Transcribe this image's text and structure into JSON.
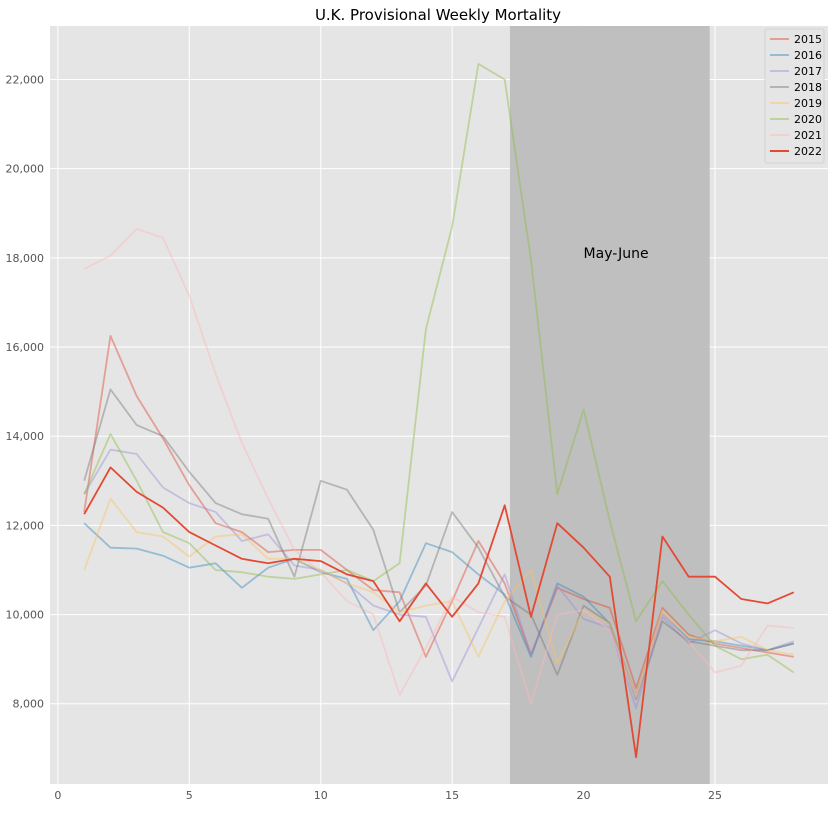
{
  "chart_data": {
    "type": "line",
    "title": "U.K. Provisional Weekly Mortality",
    "xlabel": "",
    "ylabel": "",
    "xlim": [
      -0.3,
      29.3
    ],
    "ylim": [
      6200,
      23200
    ],
    "x_ticks": [
      0,
      5,
      10,
      15,
      20,
      25
    ],
    "x_tick_labels": [
      "0",
      "5",
      "10",
      "15",
      "20",
      "25"
    ],
    "y_ticks": [
      8000,
      10000,
      12000,
      14000,
      16000,
      18000,
      20000,
      22000
    ],
    "y_tick_labels": [
      "8,000",
      "10,000",
      "12,000",
      "14,000",
      "16,000",
      "18,000",
      "20,000",
      "22,000"
    ],
    "grid": true,
    "legend_position": "top-right",
    "shaded_region": {
      "x_start": 17.2,
      "x_end": 24.8,
      "label": "May-June",
      "label_x": 20,
      "label_y": 18000,
      "color": "#bdbdbd"
    },
    "x": [
      1,
      2,
      3,
      4,
      5,
      6,
      7,
      8,
      9,
      10,
      11,
      12,
      13,
      14,
      15,
      16,
      17,
      18,
      19,
      20,
      21,
      22,
      23,
      24,
      25,
      26,
      27,
      28
    ],
    "series": [
      {
        "name": "2015",
        "color": "#E24A33",
        "opacity": 0.45,
        "values": [
          12300,
          16250,
          14900,
          13950,
          12900,
          12050,
          11850,
          11400,
          11450,
          11450,
          11000,
          10550,
          10500,
          9050,
          10300,
          11650,
          10700,
          9100,
          10600,
          10350,
          10150,
          8350,
          10150,
          9550,
          9350,
          9250,
          9150,
          9050
        ]
      },
      {
        "name": "2016",
        "color": "#348ABD",
        "opacity": 0.45,
        "values": [
          12050,
          11500,
          11480,
          11320,
          11050,
          11150,
          10600,
          11050,
          11250,
          10950,
          10800,
          9650,
          10300,
          11600,
          11400,
          10900,
          10450,
          9050,
          10700,
          10400,
          9800,
          8200,
          10000,
          9450,
          9400,
          9300,
          9200,
          9350
        ]
      },
      {
        "name": "2017",
        "color": "#988ED5",
        "opacity": 0.45,
        "values": [
          12700,
          13700,
          13600,
          12850,
          12500,
          12300,
          11650,
          11800,
          11100,
          11000,
          10700,
          10200,
          10000,
          9950,
          8500,
          9700,
          10900,
          9100,
          10650,
          9900,
          9700,
          7900,
          9950,
          9350,
          9650,
          9350,
          9200,
          9400
        ]
      },
      {
        "name": "2018",
        "color": "#777777",
        "opacity": 0.45,
        "values": [
          13000,
          15050,
          14250,
          14000,
          13200,
          12500,
          12250,
          12150,
          10850,
          13000,
          12800,
          11900,
          10050,
          10650,
          12300,
          11500,
          10400,
          10000,
          8650,
          10200,
          9800,
          8100,
          9850,
          9400,
          9300,
          9200,
          9200,
          9350
        ]
      },
      {
        "name": "2019",
        "color": "#FBC15E",
        "opacity": 0.45,
        "values": [
          11000,
          12600,
          11850,
          11750,
          11300,
          11750,
          11800,
          11250,
          11250,
          11000,
          10700,
          10500,
          10050,
          10200,
          10300,
          9050,
          10300,
          11000,
          8900,
          10100,
          9800,
          8200,
          10100,
          9500,
          9400,
          9500,
          9200,
          9100
        ]
      },
      {
        "name": "2020",
        "color": "#8EBA42",
        "opacity": 0.45,
        "values": [
          12700,
          14050,
          13000,
          11850,
          11600,
          11000,
          10950,
          10850,
          10800,
          10900,
          11000,
          10750,
          11150,
          16400,
          18700,
          22350,
          22000,
          17950,
          12700,
          14600,
          12100,
          9850,
          10750,
          10000,
          9300,
          9000,
          9100,
          8700
        ]
      },
      {
        "name": "2021",
        "color": "#FFB5B8",
        "opacity": 0.45,
        "values": [
          17750,
          18050,
          18650,
          18450,
          17150,
          15400,
          13850,
          12600,
          11450,
          10950,
          10300,
          10000,
          8200,
          9250,
          10400,
          10050,
          9950,
          8000,
          10000,
          10100,
          9650,
          8150,
          10000,
          9400,
          8700,
          8850,
          9750,
          9700
        ]
      },
      {
        "name": "2022",
        "color": "#E24A33",
        "opacity": 1,
        "values": [
          12250,
          13300,
          12750,
          12400,
          11850,
          11550,
          11250,
          11150,
          11250,
          11200,
          10900,
          10750,
          9850,
          10700,
          9950,
          10700,
          12450,
          9950,
          12050,
          11500,
          10850,
          6800,
          11750,
          10850,
          10850,
          10350,
          10250,
          10500
        ]
      }
    ]
  }
}
